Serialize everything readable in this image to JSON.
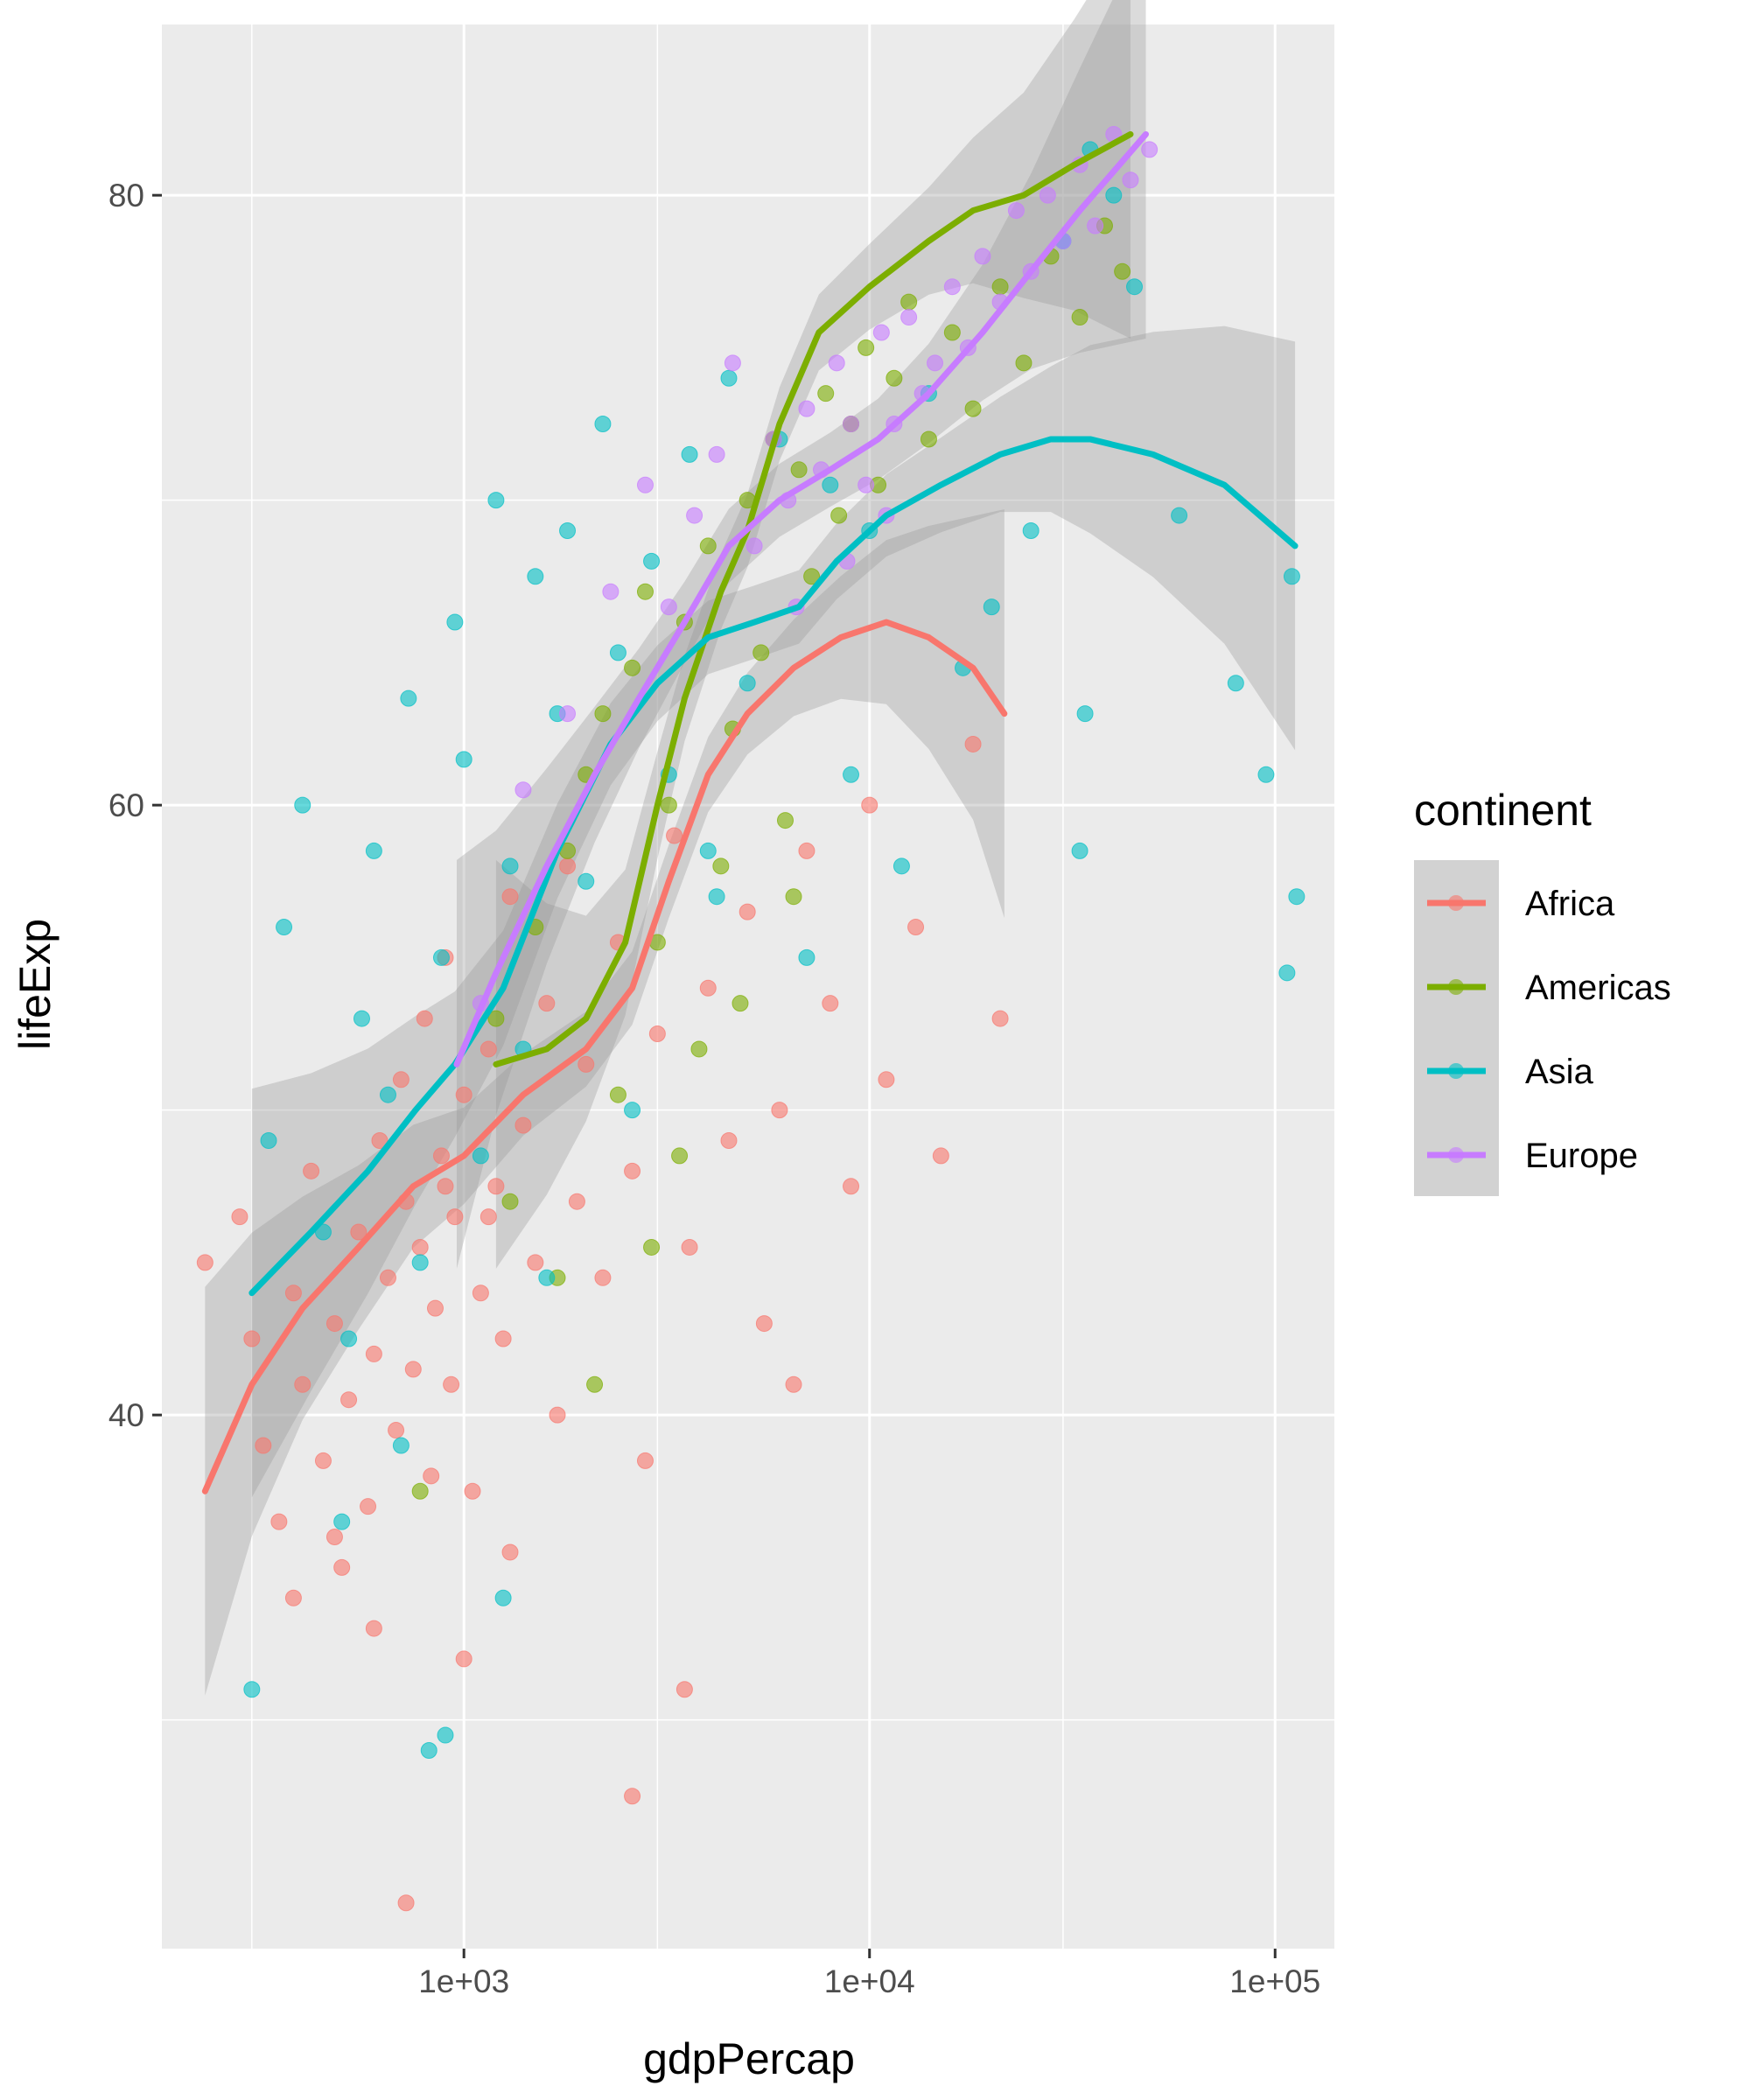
{
  "chart_data": {
    "type": "scatter",
    "title": "",
    "xlabel": "gdpPercap",
    "ylabel": "lifeExp",
    "x_scale": "log10",
    "xlim": [
      180,
      140000
    ],
    "ylim": [
      22.5,
      85.6
    ],
    "x_ticks": [
      {
        "value": 1000,
        "label": "1e+03"
      },
      {
        "value": 10000,
        "label": "1e+04"
      },
      {
        "value": 100000,
        "label": "1e+05"
      }
    ],
    "y_ticks": [
      {
        "value": 40,
        "label": "40"
      },
      {
        "value": 60,
        "label": "60"
      },
      {
        "value": 80,
        "label": "80"
      }
    ],
    "legend": {
      "title": "continent",
      "position": "right"
    },
    "series": [
      {
        "name": "Africa",
        "color": "#F8766D",
        "points": [
          [
            230,
            45.0
          ],
          [
            280,
            46.5
          ],
          [
            300,
            42.5
          ],
          [
            320,
            39.0
          ],
          [
            350,
            36.5
          ],
          [
            380,
            44.0
          ],
          [
            400,
            41.0
          ],
          [
            420,
            48.0
          ],
          [
            450,
            38.5
          ],
          [
            480,
            43.0
          ],
          [
            500,
            35.0
          ],
          [
            520,
            40.5
          ],
          [
            550,
            46.0
          ],
          [
            580,
            37.0
          ],
          [
            600,
            42.0
          ],
          [
            620,
            49.0
          ],
          [
            650,
            44.5
          ],
          [
            680,
            39.5
          ],
          [
            700,
            51.0
          ],
          [
            720,
            47.0
          ],
          [
            750,
            41.5
          ],
          [
            780,
            45.5
          ],
          [
            800,
            53.0
          ],
          [
            830,
            38.0
          ],
          [
            850,
            43.5
          ],
          [
            880,
            48.5
          ],
          [
            900,
            55.0
          ],
          [
            930,
            41.0
          ],
          [
            950,
            46.5
          ],
          [
            1000,
            50.5
          ],
          [
            1050,
            37.5
          ],
          [
            1100,
            44.0
          ],
          [
            1150,
            52.0
          ],
          [
            1200,
            47.5
          ],
          [
            1250,
            42.5
          ],
          [
            1300,
            57.0
          ],
          [
            1400,
            49.5
          ],
          [
            1500,
            45.0
          ],
          [
            1600,
            53.5
          ],
          [
            1700,
            40.0
          ],
          [
            1800,
            58.0
          ],
          [
            1900,
            47.0
          ],
          [
            2000,
            51.5
          ],
          [
            2200,
            44.5
          ],
          [
            2400,
            55.5
          ],
          [
            2600,
            48.0
          ],
          [
            2800,
            38.5
          ],
          [
            3000,
            52.5
          ],
          [
            3300,
            59.0
          ],
          [
            3600,
            45.5
          ],
          [
            4000,
            54.0
          ],
          [
            4500,
            49.0
          ],
          [
            5000,
            56.5
          ],
          [
            5500,
            43.0
          ],
          [
            6000,
            50.0
          ],
          [
            6500,
            41.0
          ],
          [
            7000,
            58.5
          ],
          [
            8000,
            53.5
          ],
          [
            9000,
            47.5
          ],
          [
            10000,
            60.0
          ],
          [
            11000,
            51.0
          ],
          [
            13000,
            56.0
          ],
          [
            15000,
            48.5
          ],
          [
            18000,
            62.0
          ],
          [
            21000,
            53.0
          ],
          [
            380,
            34.0
          ],
          [
            600,
            33.0
          ],
          [
            720,
            24.0
          ],
          [
            1000,
            32.0
          ],
          [
            3500,
            31.0
          ],
          [
            2600,
            27.5
          ],
          [
            480,
            36.0
          ],
          [
            1300,
            35.5
          ],
          [
            900,
            47.5
          ],
          [
            1150,
            46.5
          ]
        ]
      },
      {
        "name": "Americas",
        "color": "#7CAE00",
        "points": [
          [
            780,
            37.5
          ],
          [
            1200,
            53.0
          ],
          [
            1300,
            47.0
          ],
          [
            1500,
            56.0
          ],
          [
            1700,
            44.5
          ],
          [
            1800,
            58.5
          ],
          [
            2000,
            61.0
          ],
          [
            2200,
            63.0
          ],
          [
            2400,
            50.5
          ],
          [
            2600,
            64.5
          ],
          [
            2800,
            67.0
          ],
          [
            3000,
            55.5
          ],
          [
            3200,
            60.0
          ],
          [
            3500,
            66.0
          ],
          [
            3800,
            52.0
          ],
          [
            4000,
            68.5
          ],
          [
            4300,
            58.0
          ],
          [
            4600,
            62.5
          ],
          [
            5000,
            70.0
          ],
          [
            5400,
            65.0
          ],
          [
            5800,
            72.0
          ],
          [
            6200,
            59.5
          ],
          [
            6700,
            71.0
          ],
          [
            7200,
            67.5
          ],
          [
            7800,
            73.5
          ],
          [
            8400,
            69.5
          ],
          [
            9000,
            72.5
          ],
          [
            9800,
            75.0
          ],
          [
            10500,
            70.5
          ],
          [
            11500,
            74.0
          ],
          [
            12500,
            76.5
          ],
          [
            14000,
            72.0
          ],
          [
            16000,
            75.5
          ],
          [
            18000,
            73.0
          ],
          [
            21000,
            77.0
          ],
          [
            24000,
            74.5
          ],
          [
            28000,
            78.0
          ],
          [
            33000,
            76.0
          ],
          [
            38000,
            79.0
          ],
          [
            42000,
            77.5
          ],
          [
            2100,
            41.0
          ],
          [
            2900,
            45.5
          ],
          [
            3400,
            48.5
          ],
          [
            4800,
            53.5
          ],
          [
            6500,
            57.0
          ]
        ]
      },
      {
        "name": "Asia",
        "color": "#00BFC4",
        "points": [
          [
            300,
            31.0
          ],
          [
            330,
            49.0
          ],
          [
            360,
            56.0
          ],
          [
            400,
            60.0
          ],
          [
            450,
            46.0
          ],
          [
            500,
            36.5
          ],
          [
            520,
            42.5
          ],
          [
            560,
            53.0
          ],
          [
            600,
            58.5
          ],
          [
            650,
            50.5
          ],
          [
            700,
            39.0
          ],
          [
            730,
            63.5
          ],
          [
            780,
            45.0
          ],
          [
            820,
            29.0
          ],
          [
            880,
            55.0
          ],
          [
            950,
            66.0
          ],
          [
            1000,
            61.5
          ],
          [
            1100,
            48.5
          ],
          [
            1200,
            70.0
          ],
          [
            1300,
            58.0
          ],
          [
            1400,
            52.0
          ],
          [
            1500,
            67.5
          ],
          [
            1600,
            44.5
          ],
          [
            1700,
            63.0
          ],
          [
            1800,
            69.0
          ],
          [
            2000,
            57.5
          ],
          [
            2200,
            72.5
          ],
          [
            2400,
            65.0
          ],
          [
            2600,
            50.0
          ],
          [
            2900,
            68.0
          ],
          [
            3200,
            61.0
          ],
          [
            3600,
            71.5
          ],
          [
            4000,
            58.5
          ],
          [
            4500,
            74.0
          ],
          [
            5000,
            64.0
          ],
          [
            6000,
            72.0
          ],
          [
            7000,
            55.0
          ],
          [
            8000,
            70.5
          ],
          [
            9000,
            61.0
          ],
          [
            10000,
            69.0
          ],
          [
            12000,
            58.0
          ],
          [
            14000,
            73.5
          ],
          [
            17000,
            64.5
          ],
          [
            20000,
            66.5
          ],
          [
            25000,
            69.0
          ],
          [
            30000,
            78.5
          ],
          [
            35000,
            81.5
          ],
          [
            40000,
            80.0
          ],
          [
            45000,
            77.0
          ],
          [
            34000,
            63.0
          ],
          [
            33000,
            58.5
          ],
          [
            58000,
            69.5
          ],
          [
            80000,
            64.0
          ],
          [
            95000,
            61.0
          ],
          [
            110000,
            67.5
          ],
          [
            113000,
            57.0
          ],
          [
            107000,
            54.5
          ],
          [
            1250,
            34.0
          ],
          [
            900,
            29.5
          ],
          [
            4200,
            57.0
          ]
        ]
      },
      {
        "name": "Europe",
        "color": "#C77CFF",
        "points": [
          [
            1100,
            53.5
          ],
          [
            1400,
            60.5
          ],
          [
            1800,
            63.0
          ],
          [
            2300,
            67.0
          ],
          [
            2800,
            70.5
          ],
          [
            3200,
            66.5
          ],
          [
            3700,
            69.5
          ],
          [
            4200,
            71.5
          ],
          [
            4600,
            74.5
          ],
          [
            5200,
            68.5
          ],
          [
            5800,
            72.0
          ],
          [
            6300,
            70.0
          ],
          [
            7000,
            73.0
          ],
          [
            7600,
            71.0
          ],
          [
            8300,
            74.5
          ],
          [
            9000,
            72.5
          ],
          [
            9800,
            70.5
          ],
          [
            10700,
            75.5
          ],
          [
            11500,
            72.5
          ],
          [
            12500,
            76.0
          ],
          [
            13500,
            73.5
          ],
          [
            14500,
            74.5
          ],
          [
            16000,
            77.0
          ],
          [
            17500,
            75.0
          ],
          [
            19000,
            78.0
          ],
          [
            21000,
            76.5
          ],
          [
            23000,
            79.5
          ],
          [
            25000,
            77.5
          ],
          [
            27500,
            80.0
          ],
          [
            30000,
            78.5
          ],
          [
            33000,
            81.0
          ],
          [
            36000,
            79.0
          ],
          [
            40000,
            82.0
          ],
          [
            44000,
            80.5
          ],
          [
            49000,
            81.5
          ],
          [
            11000,
            69.5
          ],
          [
            8800,
            68.0
          ],
          [
            6600,
            66.5
          ]
        ]
      }
    ],
    "smooth": [
      {
        "name": "Africa",
        "color": "#F8766D",
        "points": [
          [
            230,
            37.5
          ],
          [
            300,
            41.0
          ],
          [
            400,
            43.5
          ],
          [
            550,
            45.5
          ],
          [
            750,
            47.5
          ],
          [
            1000,
            48.5
          ],
          [
            1400,
            50.5
          ],
          [
            2000,
            52.0
          ],
          [
            2600,
            54.0
          ],
          [
            3200,
            57.5
          ],
          [
            4000,
            61.0
          ],
          [
            5000,
            63.0
          ],
          [
            6500,
            64.5
          ],
          [
            8500,
            65.5
          ],
          [
            11000,
            66.0
          ],
          [
            14000,
            65.5
          ],
          [
            18000,
            64.5
          ],
          [
            21500,
            63.0
          ]
        ]
      },
      {
        "name": "Americas",
        "color": "#7CAE00",
        "points": [
          [
            1200,
            51.5
          ],
          [
            1600,
            52.0
          ],
          [
            2000,
            53.0
          ],
          [
            2500,
            55.5
          ],
          [
            3000,
            60.0
          ],
          [
            3500,
            63.5
          ],
          [
            4300,
            67.0
          ],
          [
            5000,
            69.0
          ],
          [
            6000,
            72.5
          ],
          [
            7500,
            75.5
          ],
          [
            10000,
            77.0
          ],
          [
            14000,
            78.5
          ],
          [
            18000,
            79.5
          ],
          [
            24000,
            80.0
          ],
          [
            32000,
            81.0
          ],
          [
            44000,
            82.0
          ]
        ]
      },
      {
        "name": "Asia",
        "color": "#00BFC4",
        "points": [
          [
            300,
            44.0
          ],
          [
            420,
            46.0
          ],
          [
            580,
            48.0
          ],
          [
            760,
            50.0
          ],
          [
            950,
            51.5
          ],
          [
            1250,
            54.0
          ],
          [
            1700,
            58.5
          ],
          [
            2300,
            62.0
          ],
          [
            3000,
            64.0
          ],
          [
            4000,
            65.5
          ],
          [
            5200,
            66.0
          ],
          [
            6700,
            66.5
          ],
          [
            8300,
            68.0
          ],
          [
            11000,
            69.5
          ],
          [
            15000,
            70.5
          ],
          [
            21000,
            71.5
          ],
          [
            28000,
            72.0
          ],
          [
            35000,
            72.0
          ],
          [
            50000,
            71.5
          ],
          [
            75000,
            70.5
          ],
          [
            112000,
            68.5
          ]
        ]
      },
      {
        "name": "Europe",
        "color": "#C77CFF",
        "points": [
          [
            960,
            51.5
          ],
          [
            1200,
            54.5
          ],
          [
            1600,
            58.0
          ],
          [
            2100,
            61.0
          ],
          [
            2700,
            63.5
          ],
          [
            3500,
            66.0
          ],
          [
            4500,
            68.5
          ],
          [
            6000,
            70.0
          ],
          [
            8000,
            71.0
          ],
          [
            10500,
            72.0
          ],
          [
            14000,
            73.5
          ],
          [
            19000,
            75.5
          ],
          [
            25000,
            77.5
          ],
          [
            33000,
            79.5
          ],
          [
            48000,
            82.0
          ]
        ]
      }
    ]
  }
}
